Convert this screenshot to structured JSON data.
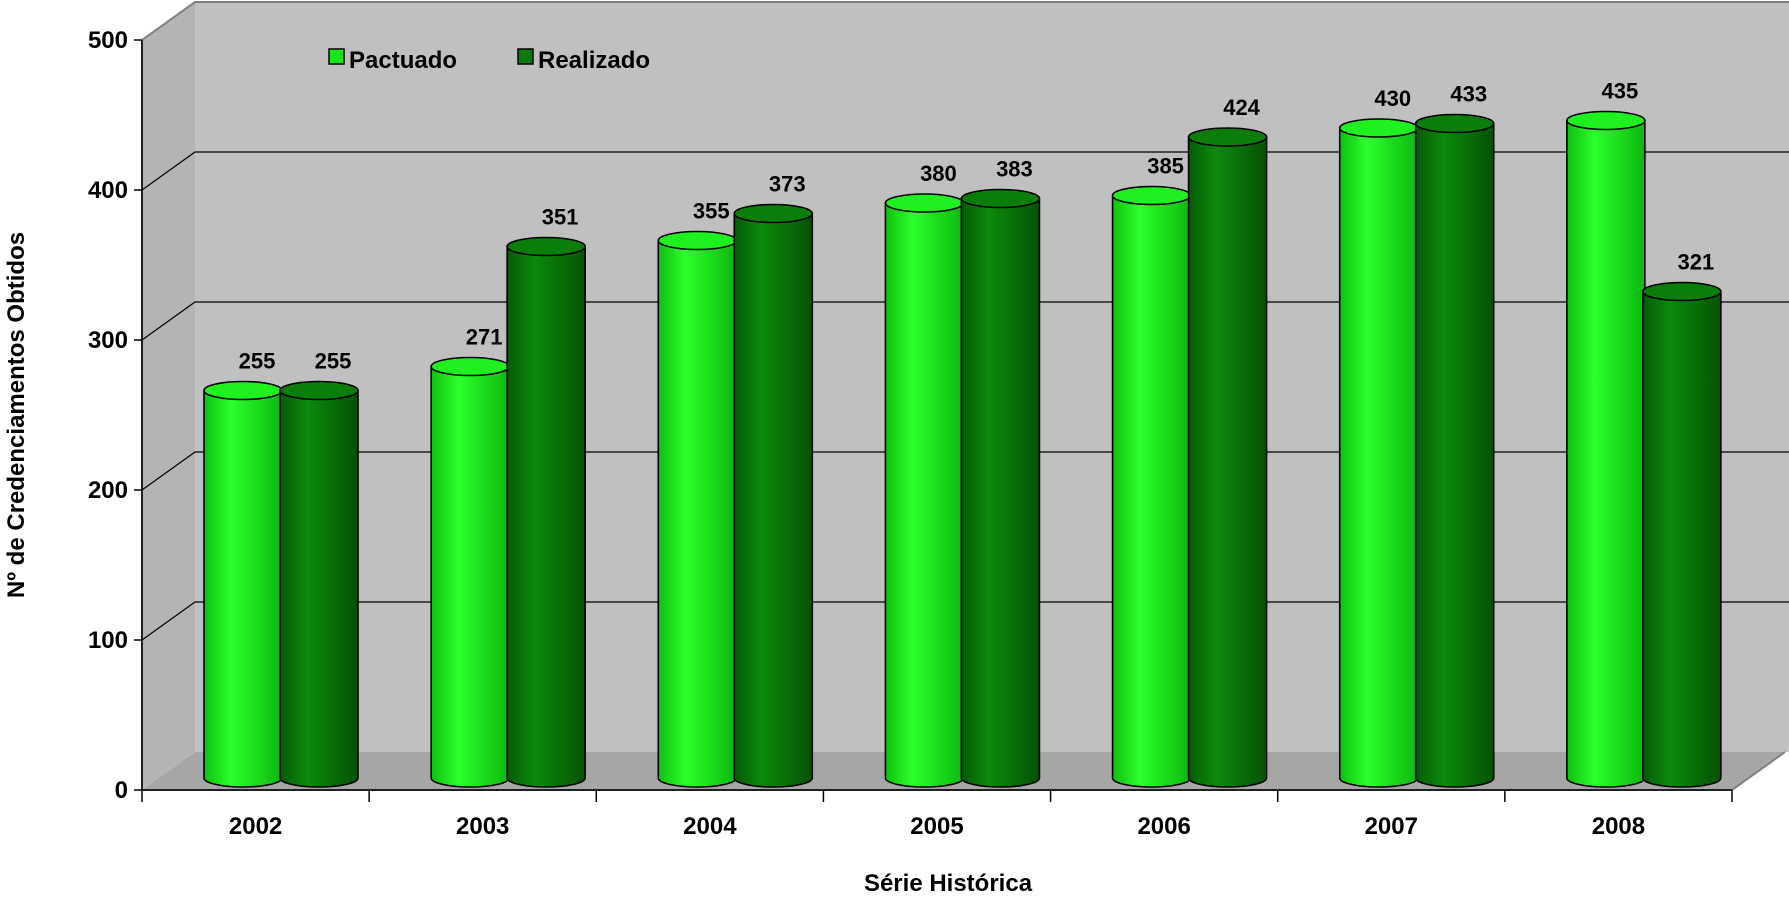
{
  "chart_data": {
    "type": "bar",
    "title": "",
    "xlabel": "Série Histórica",
    "ylabel": "Nº de Credenciamentos Obtidos",
    "categories": [
      "2002",
      "2003",
      "2004",
      "2005",
      "2006",
      "2007",
      "2008"
    ],
    "series": [
      {
        "name": "Pactuado",
        "values": [
          255,
          271,
          355,
          380,
          385,
          430,
          435
        ],
        "color": "#19e619"
      },
      {
        "name": "Realizado",
        "values": [
          255,
          351,
          373,
          383,
          424,
          433,
          321
        ],
        "color": "#0a7a0a"
      }
    ],
    "ylim": [
      0,
      500
    ],
    "yticks": [
      "0",
      "100",
      "200",
      "300",
      "400",
      "500"
    ],
    "grid": true,
    "legend_position": "top-left",
    "wall_color": "#c0c0c0",
    "bar_style": "3d-cylinder"
  }
}
